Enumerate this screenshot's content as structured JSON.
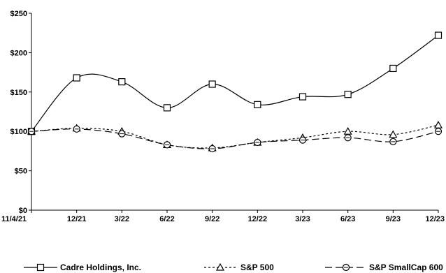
{
  "chart_data": {
    "type": "line",
    "categories": [
      "11/4/21",
      "12/21",
      "3/22",
      "6/22",
      "9/22",
      "12/22",
      "3/23",
      "6/23",
      "9/23",
      "12/23"
    ],
    "ylim": [
      0,
      250
    ],
    "yticks": [
      0,
      50,
      100,
      150,
      200,
      250
    ],
    "ytick_labels": [
      "$0",
      "$50",
      "$100",
      "$150",
      "$200",
      "$250"
    ],
    "grid": false,
    "legend_position": "bottom",
    "series": [
      {
        "name": "Cadre Holdings, Inc.",
        "values": [
          100,
          168,
          163,
          130,
          160,
          134,
          144,
          147,
          180,
          222
        ],
        "marker": "square",
        "dash": "solid",
        "color": "#000000"
      },
      {
        "name": "S&P 500",
        "values": [
          100,
          104,
          100,
          83,
          79,
          86,
          92,
          100,
          96,
          108
        ],
        "marker": "triangle",
        "dash": "dotted",
        "color": "#000000"
      },
      {
        "name": "S&P SmallCap 600",
        "values": [
          100,
          103,
          97,
          83,
          78,
          86,
          89,
          92,
          87,
          100
        ],
        "marker": "circle",
        "dash": "longdash",
        "color": "#000000"
      }
    ]
  }
}
